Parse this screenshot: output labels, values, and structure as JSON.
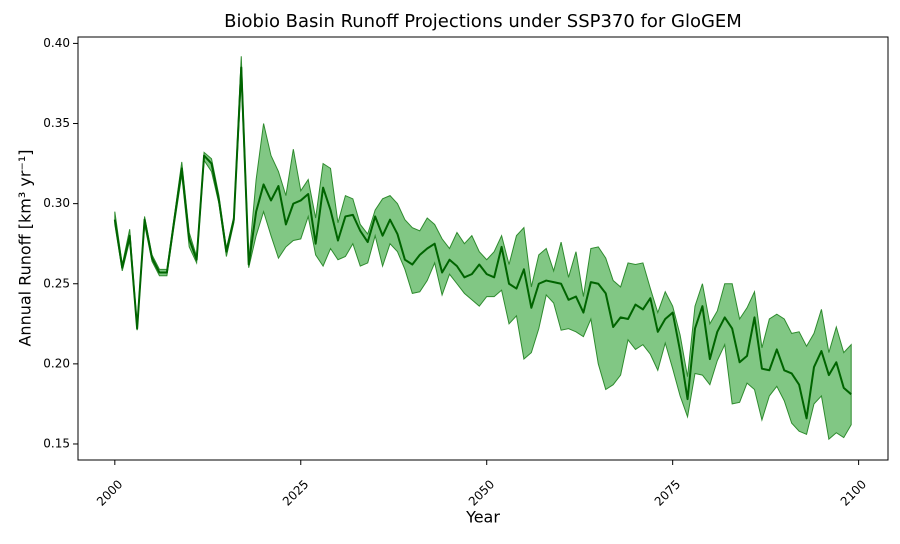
{
  "chart_data": {
    "type": "line-band",
    "title": "Biobio Basin Runoff Projections under SSP370 for GloGEM",
    "xlabel": "Year",
    "ylabel": "Annual Runoff [km³ yr⁻¹]",
    "x": [
      2000,
      2001,
      2002,
      2003,
      2004,
      2005,
      2006,
      2007,
      2008,
      2009,
      2010,
      2011,
      2012,
      2013,
      2014,
      2015,
      2016,
      2017,
      2018,
      2019,
      2020,
      2021,
      2022,
      2023,
      2024,
      2025,
      2026,
      2027,
      2028,
      2029,
      2030,
      2031,
      2032,
      2033,
      2034,
      2035,
      2036,
      2037,
      2038,
      2039,
      2040,
      2041,
      2042,
      2043,
      2044,
      2045,
      2046,
      2047,
      2048,
      2049,
      2050,
      2051,
      2052,
      2053,
      2054,
      2055,
      2056,
      2057,
      2058,
      2059,
      2060,
      2061,
      2062,
      2063,
      2064,
      2065,
      2066,
      2067,
      2068,
      2069,
      2070,
      2071,
      2072,
      2073,
      2074,
      2075,
      2076,
      2077,
      2078,
      2079,
      2080,
      2081,
      2082,
      2083,
      2084,
      2085,
      2086,
      2087,
      2088,
      2089,
      2090,
      2091,
      2092,
      2093,
      2094,
      2095,
      2096,
      2097,
      2098,
      2099
    ],
    "series": [
      {
        "color": "#006400",
        "values": [
          0.29,
          0.26,
          0.28,
          0.222,
          0.29,
          0.266,
          0.257,
          0.257,
          0.29,
          0.322,
          0.278,
          0.265,
          0.33,
          0.325,
          0.302,
          0.27,
          0.29,
          0.385,
          0.262,
          0.295,
          0.312,
          0.302,
          0.311,
          0.287,
          0.3,
          0.302,
          0.306,
          0.275,
          0.31,
          0.296,
          0.277,
          0.292,
          0.293,
          0.283,
          0.276,
          0.292,
          0.28,
          0.29,
          0.281,
          0.265,
          0.262,
          0.268,
          0.272,
          0.275,
          0.257,
          0.265,
          0.261,
          0.254,
          0.256,
          0.262,
          0.256,
          0.254,
          0.273,
          0.25,
          0.247,
          0.259,
          0.235,
          0.25,
          0.252,
          0.251,
          0.25,
          0.24,
          0.242,
          0.232,
          0.251,
          0.25,
          0.244,
          0.223,
          0.229,
          0.228,
          0.237,
          0.234,
          0.241,
          0.22,
          0.228,
          0.232,
          0.208,
          0.178,
          0.222,
          0.236,
          0.203,
          0.22,
          0.229,
          0.222,
          0.201,
          0.205,
          0.229,
          0.197,
          0.196,
          0.209,
          0.196,
          0.194,
          0.187,
          0.166,
          0.198,
          0.208,
          0.193,
          0.201,
          0.185,
          0.181
        ]
      }
    ],
    "band": {
      "color": "#4caf50",
      "alpha": 0.7,
      "edge_color": "#2e8b2e",
      "lower": [
        0.287,
        0.258,
        0.277,
        0.221,
        0.287,
        0.264,
        0.255,
        0.255,
        0.287,
        0.318,
        0.273,
        0.263,
        0.327,
        0.32,
        0.3,
        0.267,
        0.288,
        0.378,
        0.26,
        0.28,
        0.295,
        0.28,
        0.266,
        0.273,
        0.277,
        0.278,
        0.292,
        0.268,
        0.261,
        0.272,
        0.265,
        0.267,
        0.275,
        0.261,
        0.263,
        0.28,
        0.261,
        0.275,
        0.27,
        0.259,
        0.244,
        0.245,
        0.252,
        0.263,
        0.243,
        0.256,
        0.25,
        0.244,
        0.24,
        0.236,
        0.242,
        0.242,
        0.246,
        0.225,
        0.23,
        0.203,
        0.207,
        0.222,
        0.243,
        0.238,
        0.221,
        0.222,
        0.22,
        0.217,
        0.228,
        0.2,
        0.184,
        0.187,
        0.193,
        0.215,
        0.209,
        0.212,
        0.206,
        0.196,
        0.213,
        0.197,
        0.18,
        0.167,
        0.194,
        0.193,
        0.187,
        0.202,
        0.212,
        0.175,
        0.176,
        0.188,
        0.184,
        0.165,
        0.18,
        0.186,
        0.177,
        0.163,
        0.158,
        0.156,
        0.175,
        0.18,
        0.153,
        0.157,
        0.154,
        0.162
      ],
      "upper": [
        0.295,
        0.262,
        0.284,
        0.224,
        0.292,
        0.268,
        0.259,
        0.259,
        0.292,
        0.326,
        0.282,
        0.267,
        0.332,
        0.328,
        0.305,
        0.272,
        0.292,
        0.392,
        0.264,
        0.315,
        0.35,
        0.33,
        0.32,
        0.305,
        0.334,
        0.308,
        0.315,
        0.291,
        0.325,
        0.322,
        0.288,
        0.305,
        0.303,
        0.287,
        0.281,
        0.296,
        0.303,
        0.305,
        0.3,
        0.29,
        0.285,
        0.283,
        0.291,
        0.287,
        0.278,
        0.272,
        0.282,
        0.275,
        0.28,
        0.27,
        0.265,
        0.27,
        0.28,
        0.262,
        0.28,
        0.285,
        0.248,
        0.268,
        0.272,
        0.258,
        0.276,
        0.254,
        0.27,
        0.242,
        0.272,
        0.273,
        0.266,
        0.252,
        0.248,
        0.263,
        0.262,
        0.263,
        0.247,
        0.232,
        0.245,
        0.236,
        0.218,
        0.192,
        0.236,
        0.25,
        0.225,
        0.233,
        0.25,
        0.25,
        0.228,
        0.235,
        0.245,
        0.21,
        0.228,
        0.231,
        0.228,
        0.219,
        0.22,
        0.211,
        0.219,
        0.234,
        0.207,
        0.223,
        0.207,
        0.212
      ]
    },
    "xlim": [
      1995.05,
      2103.95
    ],
    "ylim": [
      0.14,
      0.404
    ],
    "xticks": [
      2000,
      2025,
      2050,
      2075,
      2100
    ],
    "yticks": [
      0.15,
      {
        "value": 0.2,
        "label": "0.20"
      },
      0.25,
      {
        "value": 0.3,
        "label": "0.30"
      },
      0.35,
      {
        "value": 0.4,
        "label": "0.40"
      }
    ]
  }
}
